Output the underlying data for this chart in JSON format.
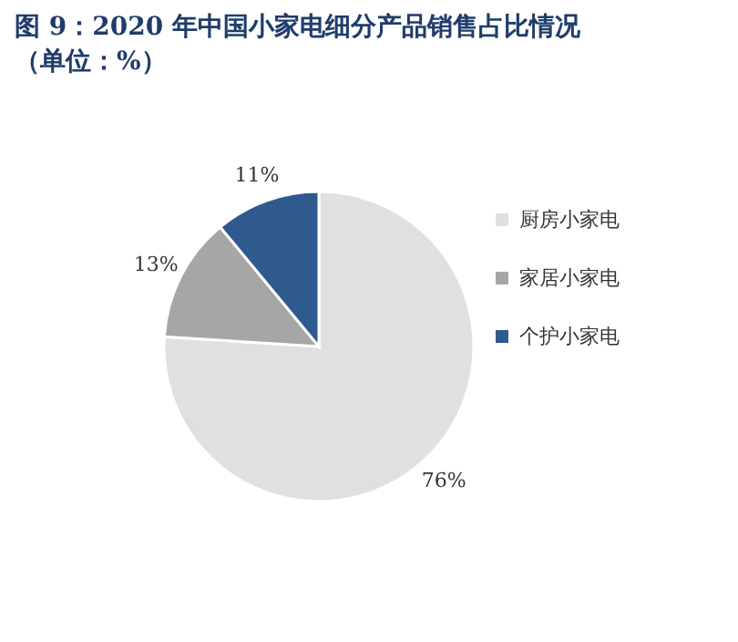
{
  "chart_data": {
    "type": "pie",
    "title": "图 9：2020 年中国小家电细分产品销售占比情况",
    "subtitle": "（单位：%）",
    "categories": [
      "厨房小家电",
      "家居小家电",
      "个护小家电"
    ],
    "values": [
      76,
      13,
      11
    ],
    "colors": [
      "#e0e0e0",
      "#a6a6a6",
      "#2f5a8e"
    ],
    "value_labels": [
      "76%",
      "13%",
      "11%"
    ],
    "legend": "right"
  }
}
